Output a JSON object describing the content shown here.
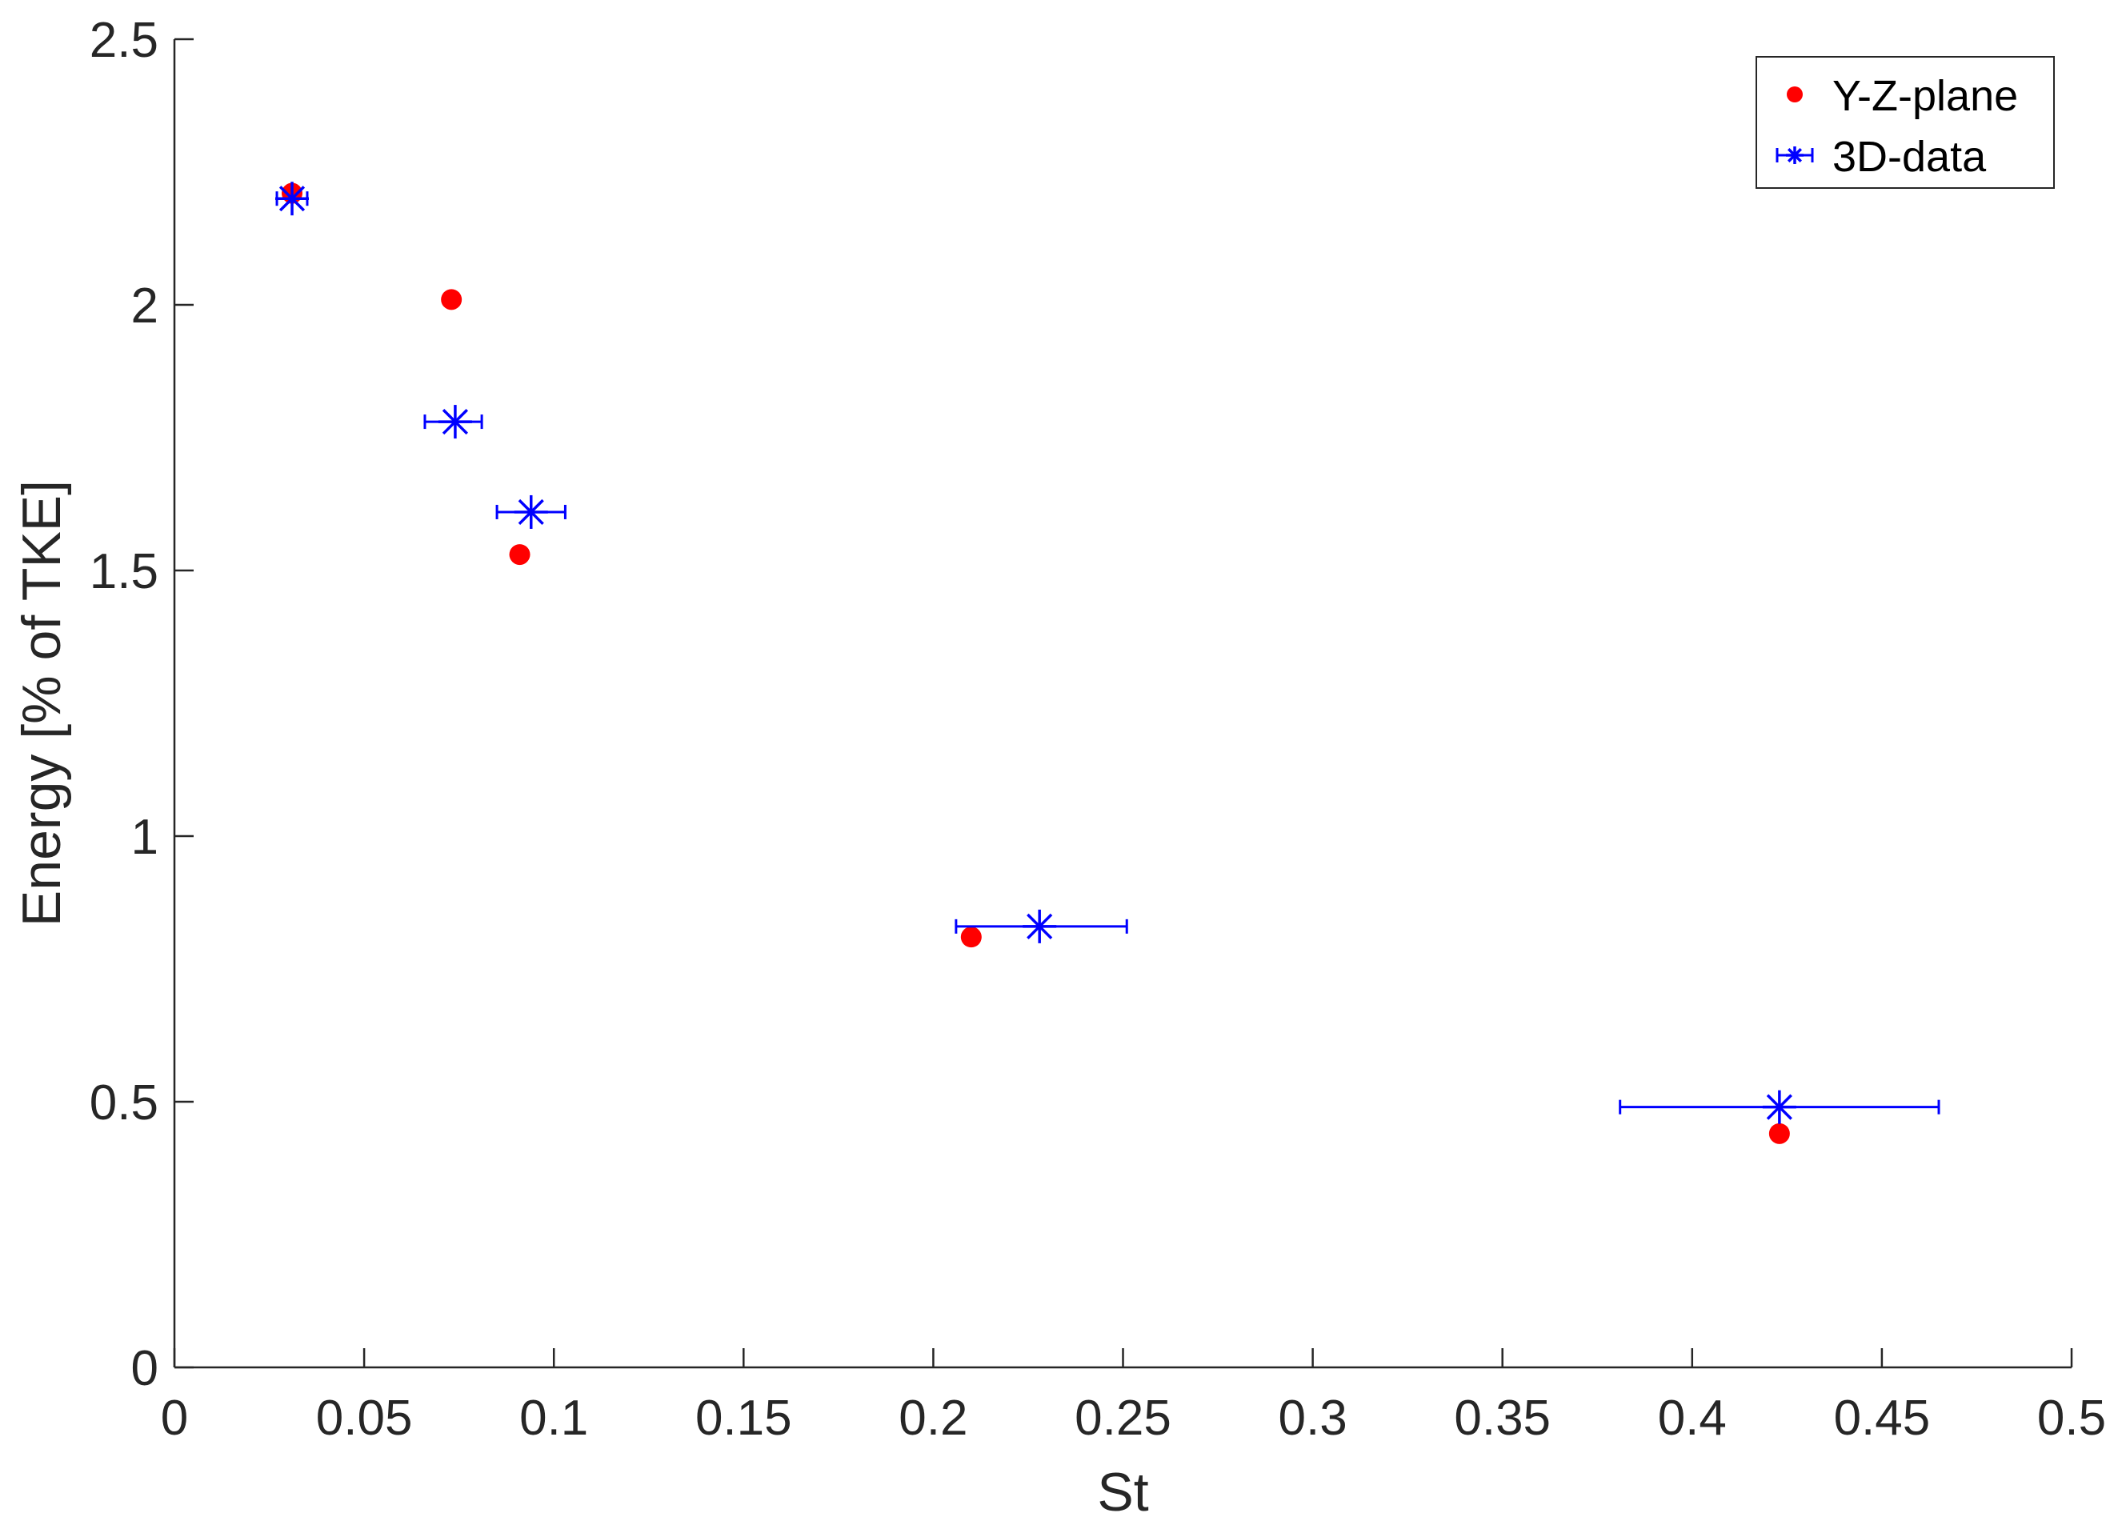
{
  "chart_data": {
    "type": "scatter",
    "title": "",
    "xlabel": "St",
    "ylabel": "Energy [% of TKE]",
    "xlim": [
      0,
      0.5
    ],
    "ylim": [
      0,
      2.5
    ],
    "xticks": [
      0,
      0.05,
      0.1,
      0.15,
      0.2,
      0.25,
      0.3,
      0.35,
      0.4,
      0.45,
      0.5
    ],
    "xtick_labels": [
      "0",
      "0.05",
      "0.1",
      "0.15",
      "0.2",
      "0.25",
      "0.3",
      "0.35",
      "0.4",
      "0.45",
      "0.5"
    ],
    "yticks": [
      0,
      0.5,
      1,
      1.5,
      2,
      2.5
    ],
    "ytick_labels": [
      "0",
      "0.5",
      "1",
      "1.5",
      "2",
      "2.5"
    ],
    "grid": false,
    "legend_position": "top-right",
    "series": [
      {
        "name": "Y-Z-plane",
        "marker": "filled-circle",
        "color": "#ff0000",
        "points": [
          {
            "x": 0.031,
            "y": 2.21
          },
          {
            "x": 0.073,
            "y": 2.01
          },
          {
            "x": 0.091,
            "y": 1.53
          },
          {
            "x": 0.21,
            "y": 0.81
          },
          {
            "x": 0.423,
            "y": 0.44
          }
        ]
      },
      {
        "name": "3D-data",
        "marker": "asterisk",
        "color": "#0000ff",
        "error_bar_direction": "horizontal",
        "points": [
          {
            "x": 0.031,
            "y": 2.2,
            "xerr_low": 0.027,
            "xerr_high": 0.035
          },
          {
            "x": 0.074,
            "y": 1.78,
            "xerr_low": 0.066,
            "xerr_high": 0.081
          },
          {
            "x": 0.094,
            "y": 1.61,
            "xerr_low": 0.085,
            "xerr_high": 0.103
          },
          {
            "x": 0.228,
            "y": 0.83,
            "xerr_low": 0.206,
            "xerr_high": 0.251
          },
          {
            "x": 0.423,
            "y": 0.49,
            "xerr_low": 0.381,
            "xerr_high": 0.465
          }
        ]
      }
    ]
  }
}
